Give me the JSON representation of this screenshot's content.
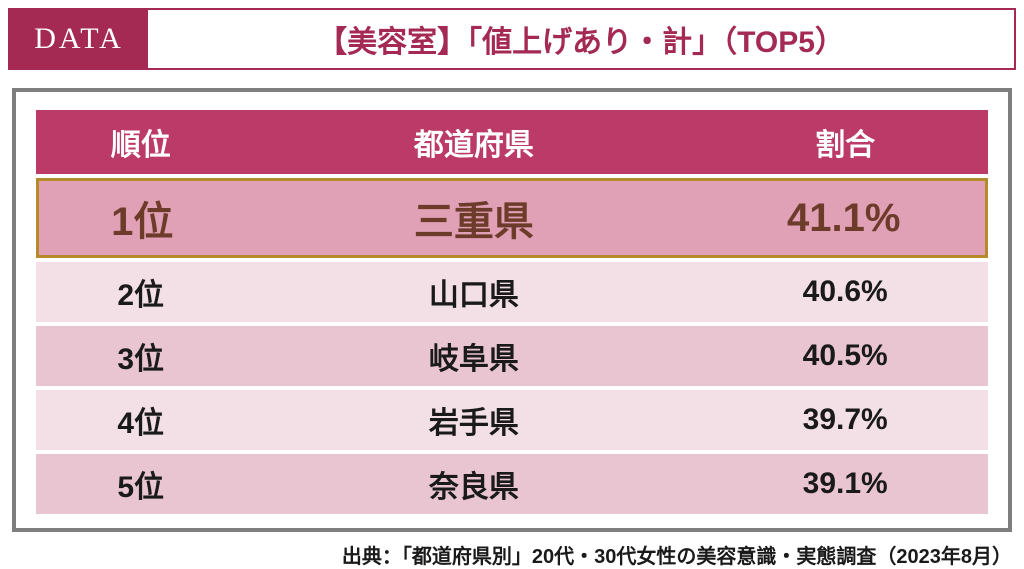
{
  "colors": {
    "brand": "#a42a53",
    "header_row_bg": "#bb3a67",
    "row_highlight_bg": "#e0a0b5",
    "row_even_bg": "#f3e0e7",
    "row_odd_bg": "#e9c5d2",
    "outer_border": "#7e7e7e",
    "highlight_border": "#b58a2a",
    "highlight_text": "#6d3b2a",
    "text_dark": "#1a1a1a",
    "white": "#ffffff"
  },
  "header": {
    "badge": "DATA",
    "title": "【美容室】「値上げあり・計」（TOP5）"
  },
  "table": {
    "columns": [
      "順位",
      "都道府県",
      "割合"
    ],
    "rows": [
      {
        "rank": "1位",
        "pref": "三重県",
        "pct": "41.1%"
      },
      {
        "rank": "2位",
        "pref": "山口県",
        "pct": "40.6%"
      },
      {
        "rank": "3位",
        "pref": "岐阜県",
        "pct": "40.5%"
      },
      {
        "rank": "4位",
        "pref": "岩手県",
        "pct": "39.7%"
      },
      {
        "rank": "5位",
        "pref": "奈良県",
        "pct": "39.1%"
      }
    ]
  },
  "source": "出典：「都道府県別」20代・30代女性の美容意識・実態調査（2023年8月）"
}
